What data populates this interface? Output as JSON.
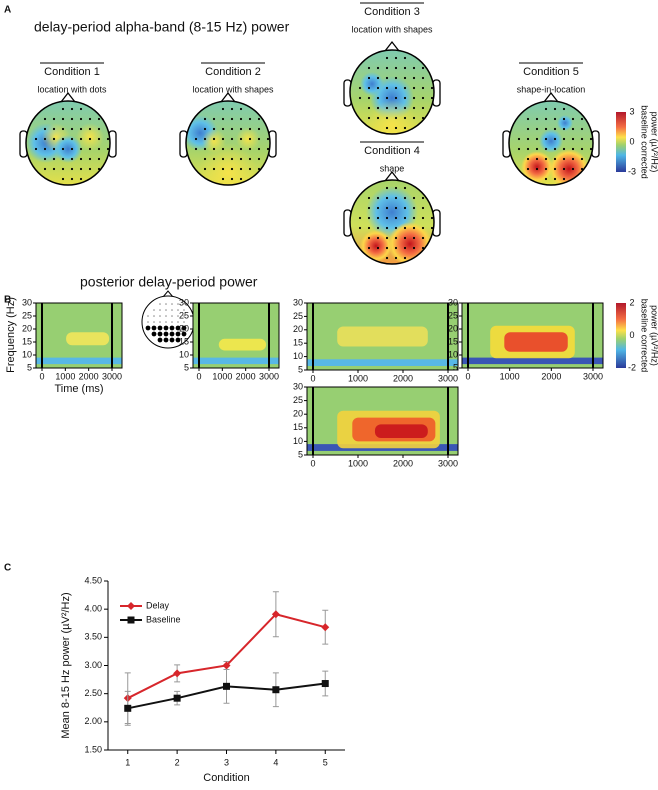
{
  "panels": {
    "a": {
      "letter": "A",
      "title": "delay-period alpha-band (8-15 Hz) power",
      "maps": [
        {
          "condition": "Condition 1",
          "label": "location with dots"
        },
        {
          "condition": "Condition 2",
          "label": "location with shapes"
        },
        {
          "condition": "Condition 3",
          "label": "location with shapes"
        },
        {
          "condition": "Condition 4",
          "label": "shape"
        },
        {
          "condition": "Condition 5",
          "label": "shape-in-location"
        }
      ],
      "colorbar": {
        "label": [
          "baseline corrected",
          "power (µV²/Hz)"
        ],
        "ticks": [
          3,
          0,
          -3
        ]
      }
    },
    "b": {
      "letter": "B",
      "title": "posterior delay-period power",
      "y_label": "Frequency (Hz)",
      "x_label": "Time (ms)",
      "yticks": [
        30,
        25,
        20,
        15,
        10,
        5
      ],
      "xticks": [
        0,
        1000,
        2000,
        3000
      ],
      "colorbar": {
        "label": [
          "baseline corrected",
          "power (µV²/Hz)"
        ],
        "ticks": [
          2,
          0,
          -2
        ]
      }
    },
    "c": {
      "letter": "C"
    }
  },
  "chart_data": {
    "type": "line",
    "y_label": "Mean 8-15 Hz power (µV²/Hz)",
    "x_label": "Condition",
    "x": [
      1,
      2,
      3,
      4,
      5
    ],
    "xlim": [
      0.6,
      5.4
    ],
    "xticks": [
      1,
      2,
      3,
      4,
      5
    ],
    "ylim": [
      1.5,
      4.5
    ],
    "yticks": [
      {
        "value": 1.5,
        "label": "1.50"
      },
      {
        "value": 2.0,
        "label": "2.00"
      },
      {
        "value": 2.5,
        "label": "2.50"
      },
      {
        "value": 3.0,
        "label": "3.00"
      },
      {
        "value": 3.5,
        "label": "3.50"
      },
      {
        "value": 4.0,
        "label": "4.00"
      },
      {
        "value": 4.5,
        "label": "4.50"
      }
    ],
    "legend": "upper left",
    "series": [
      {
        "name": "Delay",
        "color": "#d7262b",
        "marker": "diamond",
        "values": [
          2.42,
          2.86,
          3.0,
          3.91,
          3.68
        ],
        "errors": [
          0.45,
          0.15,
          0.07,
          0.4,
          0.3
        ]
      },
      {
        "name": "Baseline",
        "color": "#111111",
        "marker": "square",
        "values": [
          2.24,
          2.42,
          2.63,
          2.57,
          2.68
        ],
        "errors": [
          0.3,
          0.12,
          0.3,
          0.3,
          0.22
        ]
      }
    ]
  }
}
